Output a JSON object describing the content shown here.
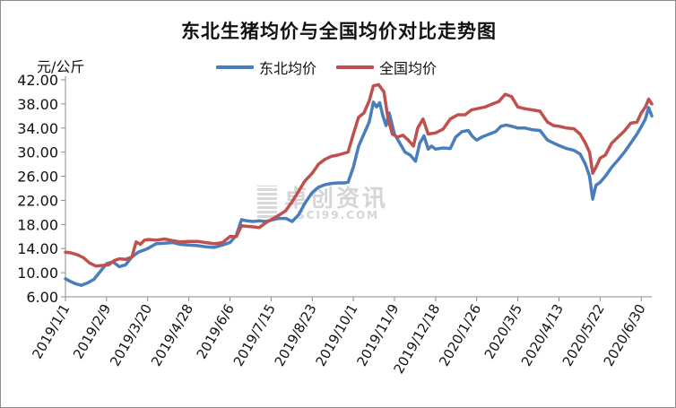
{
  "chart_data": {
    "type": "line",
    "title": "东北生猪均价与全国均价对比走势图",
    "ylabel": "元/公斤",
    "xlabel": "",
    "ylim": [
      6,
      42
    ],
    "yticks": [
      "6.00",
      "10.00",
      "14.00",
      "18.00",
      "22.00",
      "26.00",
      "30.00",
      "34.00",
      "38.00",
      "42.00"
    ],
    "xticks": [
      "2019/1/1",
      "2019/2/9",
      "2019/3/20",
      "2019/4/28",
      "2019/6/6",
      "2019/7/15",
      "2019/8/23",
      "2019/10/1",
      "2019/11/9",
      "2019/12/18",
      "2020/1/26",
      "2020/3/5",
      "2020/4/13",
      "2020/5/22",
      "2020/6/30"
    ],
    "legend_position": "top",
    "grid": false,
    "series": [
      {
        "name": "东北均价",
        "color": "#4a7ebb",
        "points": [
          [
            "2019/1/1",
            9.0
          ],
          [
            "2019/1/5",
            8.6
          ],
          [
            "2019/1/10",
            8.2
          ],
          [
            "2019/1/16",
            7.9
          ],
          [
            "2019/1/22",
            8.3
          ],
          [
            "2019/1/28",
            8.9
          ],
          [
            "2019/2/3",
            10.2
          ],
          [
            "2019/2/9",
            11.5
          ],
          [
            "2019/2/15",
            11.8
          ],
          [
            "2019/2/21",
            11.0
          ],
          [
            "2019/2/27",
            11.3
          ],
          [
            "2019/3/5",
            12.6
          ],
          [
            "2019/3/11",
            13.4
          ],
          [
            "2019/3/20",
            14.0
          ],
          [
            "2019/3/28",
            14.8
          ],
          [
            "2019/4/5",
            14.9
          ],
          [
            "2019/4/13",
            15.0
          ],
          [
            "2019/4/20",
            14.7
          ],
          [
            "2019/4/28",
            14.6
          ],
          [
            "2019/5/6",
            14.5
          ],
          [
            "2019/5/14",
            14.3
          ],
          [
            "2019/5/22",
            14.2
          ],
          [
            "2019/5/30",
            14.6
          ],
          [
            "2019/6/6",
            15.0
          ],
          [
            "2019/6/12",
            16.2
          ],
          [
            "2019/6/17",
            18.8
          ],
          [
            "2019/6/22",
            18.6
          ],
          [
            "2019/6/28",
            18.5
          ],
          [
            "2019/7/4",
            18.6
          ],
          [
            "2019/7/10",
            18.5
          ],
          [
            "2019/7/15",
            18.7
          ],
          [
            "2019/7/22",
            19.0
          ],
          [
            "2019/7/29",
            19.0
          ],
          [
            "2019/8/4",
            18.5
          ],
          [
            "2019/8/10",
            19.6
          ],
          [
            "2019/8/16",
            21.5
          ],
          [
            "2019/8/23",
            23.3
          ],
          [
            "2019/8/29",
            24.2
          ],
          [
            "2019/9/4",
            24.6
          ],
          [
            "2019/9/10",
            24.8
          ],
          [
            "2019/9/16",
            24.9
          ],
          [
            "2019/9/22",
            24.9
          ],
          [
            "2019/9/26",
            25.0
          ],
          [
            "2019/10/1",
            27.5
          ],
          [
            "2019/10/6",
            31.0
          ],
          [
            "2019/10/11",
            33.0
          ],
          [
            "2019/10/16",
            35.0
          ],
          [
            "2019/10/20",
            38.3
          ],
          [
            "2019/10/23",
            37.5
          ],
          [
            "2019/10/26",
            38.2
          ],
          [
            "2019/10/29",
            36.0
          ],
          [
            "2019/11/1",
            34.4
          ],
          [
            "2019/11/4",
            36.5
          ],
          [
            "2019/11/9",
            33.0
          ],
          [
            "2019/11/14",
            31.5
          ],
          [
            "2019/11/19",
            30.0
          ],
          [
            "2019/11/24",
            29.5
          ],
          [
            "2019/11/29",
            28.5
          ],
          [
            "2019/12/3",
            31.5
          ],
          [
            "2019/12/7",
            32.7
          ],
          [
            "2019/12/11",
            30.5
          ],
          [
            "2019/12/14",
            31.0
          ],
          [
            "2019/12/18",
            30.5
          ],
          [
            "2019/12/25",
            30.7
          ],
          [
            "2020/1/1",
            30.6
          ],
          [
            "2020/1/6",
            32.5
          ],
          [
            "2020/1/12",
            33.4
          ],
          [
            "2020/1/18",
            33.6
          ],
          [
            "2020/1/22",
            32.6
          ],
          [
            "2020/1/26",
            32.0
          ],
          [
            "2020/2/1",
            32.6
          ],
          [
            "2020/2/7",
            33.0
          ],
          [
            "2020/2/13",
            33.4
          ],
          [
            "2020/2/18",
            34.3
          ],
          [
            "2020/2/23",
            34.5
          ],
          [
            "2020/2/28",
            34.3
          ],
          [
            "2020/3/5",
            34.0
          ],
          [
            "2020/3/12",
            34.0
          ],
          [
            "2020/3/19",
            33.7
          ],
          [
            "2020/3/26",
            33.6
          ],
          [
            "2020/4/2",
            32.0
          ],
          [
            "2020/4/8",
            31.5
          ],
          [
            "2020/4/13",
            31.1
          ],
          [
            "2020/4/20",
            30.6
          ],
          [
            "2020/4/27",
            30.3
          ],
          [
            "2020/5/3",
            29.7
          ],
          [
            "2020/5/8",
            28.0
          ],
          [
            "2020/5/12",
            26.0
          ],
          [
            "2020/5/15",
            22.2
          ],
          [
            "2020/5/18",
            24.5
          ],
          [
            "2020/5/22",
            25.0
          ],
          [
            "2020/5/27",
            26.0
          ],
          [
            "2020/6/2",
            27.5
          ],
          [
            "2020/6/8",
            28.7
          ],
          [
            "2020/6/14",
            30.0
          ],
          [
            "2020/6/20",
            31.5
          ],
          [
            "2020/6/26",
            33.0
          ],
          [
            "2020/6/30",
            34.2
          ],
          [
            "2020/7/4",
            35.5
          ],
          [
            "2020/7/7",
            37.4
          ],
          [
            "2020/7/10",
            36.0
          ]
        ]
      },
      {
        "name": "全国均价",
        "color": "#c0504d",
        "points": [
          [
            "2019/1/1",
            13.4
          ],
          [
            "2019/1/6",
            13.3
          ],
          [
            "2019/1/12",
            13.0
          ],
          [
            "2019/1/18",
            12.5
          ],
          [
            "2019/1/24",
            11.6
          ],
          [
            "2019/1/30",
            11.1
          ],
          [
            "2019/2/5",
            11.2
          ],
          [
            "2019/2/11",
            11.3
          ],
          [
            "2019/2/16",
            12.0
          ],
          [
            "2019/2/21",
            12.3
          ],
          [
            "2019/2/27",
            12.2
          ],
          [
            "2019/3/5",
            12.6
          ],
          [
            "2019/3/9",
            15.1
          ],
          [
            "2019/3/13",
            14.7
          ],
          [
            "2019/3/17",
            15.4
          ],
          [
            "2019/3/20",
            15.5
          ],
          [
            "2019/3/28",
            15.4
          ],
          [
            "2019/4/5",
            15.6
          ],
          [
            "2019/4/13",
            15.3
          ],
          [
            "2019/4/20",
            15.1
          ],
          [
            "2019/4/28",
            15.2
          ],
          [
            "2019/5/6",
            15.2
          ],
          [
            "2019/5/14",
            15.0
          ],
          [
            "2019/5/22",
            14.8
          ],
          [
            "2019/5/30",
            15.0
          ],
          [
            "2019/6/6",
            16.0
          ],
          [
            "2019/6/12",
            16.0
          ],
          [
            "2019/6/17",
            17.8
          ],
          [
            "2019/6/22",
            17.7
          ],
          [
            "2019/6/28",
            17.6
          ],
          [
            "2019/7/4",
            17.5
          ],
          [
            "2019/7/10",
            18.3
          ],
          [
            "2019/7/15",
            18.8
          ],
          [
            "2019/7/22",
            19.5
          ],
          [
            "2019/7/29",
            20.3
          ],
          [
            "2019/8/4",
            21.8
          ],
          [
            "2019/8/10",
            23.5
          ],
          [
            "2019/8/16",
            25.2
          ],
          [
            "2019/8/23",
            26.5
          ],
          [
            "2019/8/29",
            28.0
          ],
          [
            "2019/9/4",
            28.8
          ],
          [
            "2019/9/10",
            29.3
          ],
          [
            "2019/9/16",
            29.5
          ],
          [
            "2019/9/22",
            29.8
          ],
          [
            "2019/9/26",
            30.0
          ],
          [
            "2019/10/1",
            33.0
          ],
          [
            "2019/10/6",
            35.8
          ],
          [
            "2019/10/11",
            36.5
          ],
          [
            "2019/10/16",
            38.5
          ],
          [
            "2019/10/20",
            41.0
          ],
          [
            "2019/10/25",
            41.2
          ],
          [
            "2019/10/30",
            40.0
          ],
          [
            "2019/11/3",
            35.5
          ],
          [
            "2019/11/7",
            33.0
          ],
          [
            "2019/11/12",
            32.5
          ],
          [
            "2019/11/17",
            32.8
          ],
          [
            "2019/11/22",
            32.0
          ],
          [
            "2019/11/27",
            31.0
          ],
          [
            "2019/12/1",
            34.0
          ],
          [
            "2019/12/6",
            35.5
          ],
          [
            "2019/12/11",
            33.0
          ],
          [
            "2019/12/18",
            33.2
          ],
          [
            "2019/12/25",
            33.8
          ],
          [
            "2020/1/1",
            35.5
          ],
          [
            "2020/1/8",
            36.2
          ],
          [
            "2020/1/15",
            36.2
          ],
          [
            "2020/1/21",
            37.0
          ],
          [
            "2020/1/26",
            37.2
          ],
          [
            "2020/2/3",
            37.5
          ],
          [
            "2020/2/10",
            38.0
          ],
          [
            "2020/2/16",
            38.4
          ],
          [
            "2020/2/22",
            39.6
          ],
          [
            "2020/2/28",
            39.2
          ],
          [
            "2020/3/5",
            37.5
          ],
          [
            "2020/3/12",
            37.2
          ],
          [
            "2020/3/19",
            37.0
          ],
          [
            "2020/3/26",
            36.8
          ],
          [
            "2020/4/2",
            35.0
          ],
          [
            "2020/4/8",
            34.4
          ],
          [
            "2020/4/13",
            34.3
          ],
          [
            "2020/4/20",
            34.0
          ],
          [
            "2020/4/27",
            33.9
          ],
          [
            "2020/5/3",
            33.0
          ],
          [
            "2020/5/8",
            31.5
          ],
          [
            "2020/5/12",
            30.0
          ],
          [
            "2020/5/15",
            26.5
          ],
          [
            "2020/5/18",
            27.5
          ],
          [
            "2020/5/22",
            29.0
          ],
          [
            "2020/5/27",
            29.5
          ],
          [
            "2020/6/2",
            31.5
          ],
          [
            "2020/6/8",
            32.5
          ],
          [
            "2020/6/14",
            33.5
          ],
          [
            "2020/6/20",
            34.8
          ],
          [
            "2020/6/26",
            35.0
          ],
          [
            "2020/6/30",
            36.5
          ],
          [
            "2020/7/4",
            37.5
          ],
          [
            "2020/7/7",
            38.8
          ],
          [
            "2020/7/10",
            38.0
          ]
        ]
      }
    ]
  },
  "watermark": {
    "text": "卓创资讯",
    "subtext": "SCI99.COM"
  }
}
